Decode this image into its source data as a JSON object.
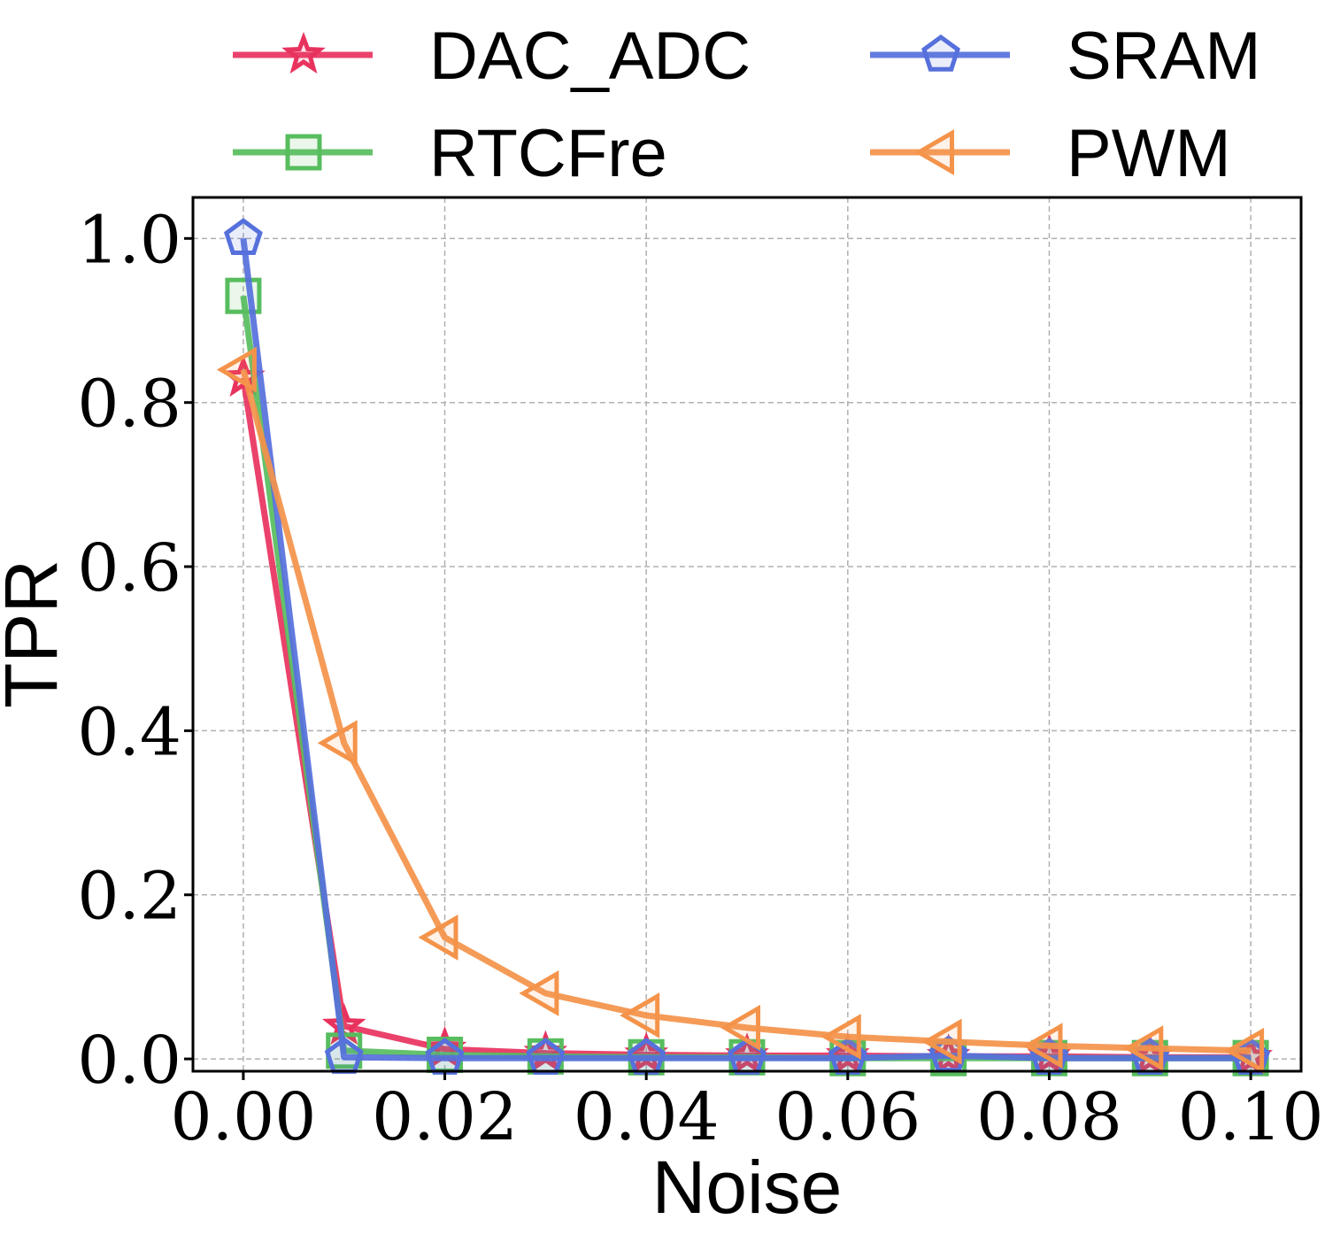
{
  "chart_data": {
    "type": "line",
    "title": "",
    "xlabel": "Noise",
    "ylabel": "TPR",
    "xlim": [
      -0.005,
      0.105
    ],
    "ylim": [
      -0.015,
      1.05
    ],
    "xticks": [
      0.0,
      0.02,
      0.04,
      0.06,
      0.08,
      0.1
    ],
    "xtick_labels": [
      "0.00",
      "0.02",
      "0.04",
      "0.06",
      "0.08",
      "0.10"
    ],
    "yticks": [
      0.0,
      0.2,
      0.4,
      0.6,
      0.8,
      1.0
    ],
    "ytick_labels": [
      "0.0",
      "0.2",
      "0.4",
      "0.6",
      "0.8",
      "1.0"
    ],
    "grid": true,
    "legend_position": "top",
    "x": [
      0.0,
      0.01,
      0.02,
      0.03,
      0.04,
      0.05,
      0.06,
      0.07,
      0.08,
      0.09,
      0.1
    ],
    "series": [
      {
        "name": "DAC_ADC",
        "color": "#e8325e",
        "marker": "star",
        "values": [
          0.83,
          0.04,
          0.012,
          0.007,
          0.005,
          0.004,
          0.004,
          0.003,
          0.003,
          0.002,
          0.002
        ]
      },
      {
        "name": "RTCFre",
        "color": "#57bd5e",
        "marker": "square",
        "values": [
          0.93,
          0.01,
          0.005,
          0.003,
          0.002,
          0.002,
          0.001,
          0.001,
          0.001,
          0.001,
          0.001
        ]
      },
      {
        "name": "SRAM",
        "color": "#5670dc",
        "marker": "pentagon",
        "values": [
          1.0,
          0.002,
          0.001,
          0.001,
          0.001,
          0.001,
          0.001,
          0.004,
          0.001,
          0.001,
          0.001
        ]
      },
      {
        "name": "PWM",
        "color": "#f4934a",
        "marker": "triangle-left",
        "values": [
          0.84,
          0.385,
          0.148,
          0.08,
          0.053,
          0.038,
          0.027,
          0.021,
          0.016,
          0.013,
          0.01
        ]
      }
    ]
  }
}
